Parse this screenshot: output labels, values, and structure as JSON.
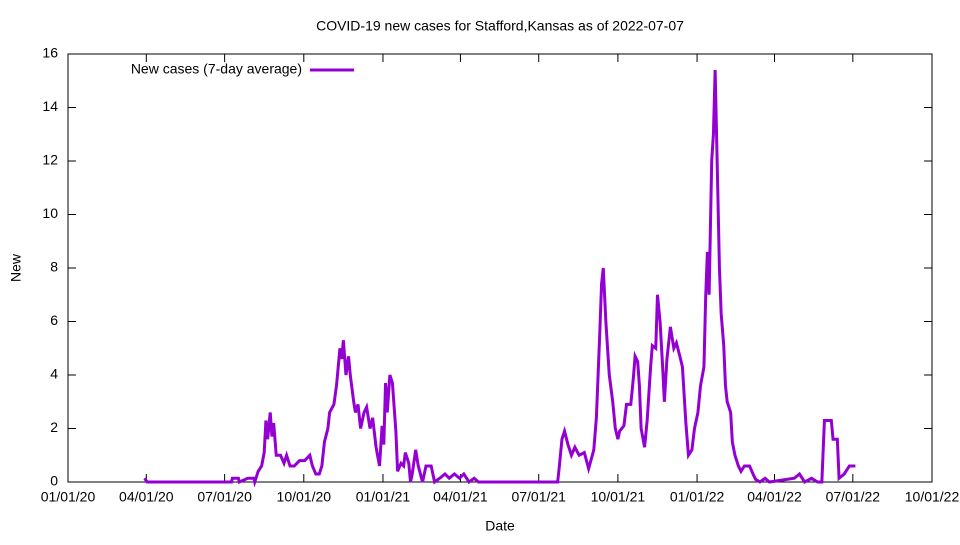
{
  "chart_data": {
    "type": "line",
    "title": "COVID-19 new cases for Stafford,Kansas as of 2022-07-07",
    "xlabel": "Date",
    "ylabel": "New",
    "legend": "top-left",
    "xlim": [
      "2020-01-01",
      "2022-10-01"
    ],
    "xticks": [
      {
        "value": "2020-01-01",
        "label": "01/01/20"
      },
      {
        "value": "2020-04-01",
        "label": "04/01/20"
      },
      {
        "value": "2020-07-01",
        "label": "07/01/20"
      },
      {
        "value": "2020-10-01",
        "label": "10/01/20"
      },
      {
        "value": "2021-01-01",
        "label": "01/01/21"
      },
      {
        "value": "2021-04-01",
        "label": "04/01/21"
      },
      {
        "value": "2021-07-01",
        "label": "07/01/21"
      },
      {
        "value": "2021-10-01",
        "label": "10/01/21"
      },
      {
        "value": "2022-01-01",
        "label": "01/01/22"
      },
      {
        "value": "2022-04-01",
        "label": "04/01/22"
      },
      {
        "value": "2022-07-01",
        "label": "07/01/22"
      },
      {
        "value": "2022-10-01",
        "label": "10/01/22"
      }
    ],
    "ylim": [
      0,
      16
    ],
    "yticks": [
      0,
      2,
      4,
      6,
      8,
      10,
      12,
      14,
      16
    ],
    "x": [
      "2020-03-30",
      "2020-04-02",
      "2020-07-09",
      "2020-07-10",
      "2020-07-17",
      "2020-07-18",
      "2020-07-28",
      "2020-08-04",
      "2020-08-05",
      "2020-08-09",
      "2020-08-13",
      "2020-08-16",
      "2020-08-18",
      "2020-08-20",
      "2020-08-23",
      "2020-08-25",
      "2020-08-27",
      "2020-08-30",
      "2020-09-04",
      "2020-09-08",
      "2020-09-11",
      "2020-09-15",
      "2020-09-20",
      "2020-09-26",
      "2020-10-02",
      "2020-10-08",
      "2020-10-11",
      "2020-10-15",
      "2020-10-19",
      "2020-10-22",
      "2020-10-25",
      "2020-10-29",
      "2020-10-31",
      "2020-11-05",
      "2020-11-08",
      "2020-11-12",
      "2020-11-14",
      "2020-11-16",
      "2020-11-19",
      "2020-11-22",
      "2020-11-24",
      "2020-11-28",
      "2020-11-30",
      "2020-12-03",
      "2020-12-06",
      "2020-12-10",
      "2020-12-13",
      "2020-12-17",
      "2020-12-20",
      "2020-12-24",
      "2020-12-28",
      "2020-12-31",
      "2021-01-02",
      "2021-01-04",
      "2021-01-06",
      "2021-01-09",
      "2021-01-12",
      "2021-01-16",
      "2021-01-18",
      "2021-01-22",
      "2021-01-25",
      "2021-01-27",
      "2021-01-31",
      "2021-02-02",
      "2021-02-04",
      "2021-02-08",
      "2021-02-11",
      "2021-02-16",
      "2021-02-20",
      "2021-02-26",
      "2021-03-02",
      "2021-03-08",
      "2021-03-14",
      "2021-03-19",
      "2021-03-25",
      "2021-03-31",
      "2021-04-05",
      "2021-04-11",
      "2021-04-17",
      "2021-04-22",
      "2021-07-23",
      "2021-07-25",
      "2021-07-28",
      "2021-07-31",
      "2021-08-04",
      "2021-08-08",
      "2021-08-12",
      "2021-08-17",
      "2021-08-23",
      "2021-08-28",
      "2021-09-03",
      "2021-09-06",
      "2021-09-10",
      "2021-09-12",
      "2021-09-14",
      "2021-09-17",
      "2021-09-19",
      "2021-09-21",
      "2021-09-25",
      "2021-09-28",
      "2021-10-01",
      "2021-10-03",
      "2021-10-08",
      "2021-10-11",
      "2021-10-16",
      "2021-10-19",
      "2021-10-21",
      "2021-10-24",
      "2021-10-26",
      "2021-10-28",
      "2021-11-01",
      "2021-11-04",
      "2021-11-08",
      "2021-11-10",
      "2021-11-14",
      "2021-11-16",
      "2021-11-19",
      "2021-11-22",
      "2021-11-24",
      "2021-11-27",
      "2021-12-01",
      "2021-12-05",
      "2021-12-08",
      "2021-12-12",
      "2021-12-15",
      "2021-12-19",
      "2021-12-22",
      "2021-12-26",
      "2021-12-29",
      "2022-01-02",
      "2022-01-05",
      "2022-01-09",
      "2022-01-11",
      "2022-01-13",
      "2022-01-15",
      "2022-01-18",
      "2022-01-20",
      "2022-01-22",
      "2022-01-25",
      "2022-01-27",
      "2022-01-29",
      "2022-02-01",
      "2022-02-03",
      "2022-02-05",
      "2022-02-09",
      "2022-02-11",
      "2022-02-14",
      "2022-02-18",
      "2022-02-21",
      "2022-02-25",
      "2022-03-03",
      "2022-03-07",
      "2022-03-10",
      "2022-03-15",
      "2022-03-21",
      "2022-03-26",
      "2022-04-24",
      "2022-04-30",
      "2022-05-06",
      "2022-05-14",
      "2022-05-21",
      "2022-05-26",
      "2022-05-29",
      "2022-06-06",
      "2022-06-08",
      "2022-06-13",
      "2022-06-15",
      "2022-06-21",
      "2022-06-27",
      "2022-07-04"
    ],
    "series": [
      {
        "name": "New cases (7-day average)",
        "color": "#9400d3",
        "values": [
          0.14,
          0,
          0,
          0.14,
          0.14,
          0,
          0.14,
          0.14,
          0,
          0.4,
          0.6,
          1.1,
          2.3,
          1.6,
          2.6,
          1.7,
          2.2,
          1.0,
          1.0,
          0.7,
          1.0,
          0.6,
          0.6,
          0.8,
          0.8,
          1.0,
          0.6,
          0.3,
          0.3,
          0.6,
          1.5,
          2.0,
          2.6,
          2.9,
          3.6,
          5.0,
          4.6,
          5.3,
          4.0,
          4.7,
          4.0,
          3.0,
          2.6,
          2.9,
          2.0,
          2.6,
          2.8,
          2.0,
          2.4,
          1.3,
          0.6,
          2.1,
          1.4,
          3.7,
          2.6,
          4.0,
          3.7,
          1.9,
          0.4,
          0.7,
          0.6,
          1.1,
          0.7,
          0,
          0.3,
          1.2,
          0.6,
          0,
          0.6,
          0.6,
          0,
          0.14,
          0.3,
          0.14,
          0.3,
          0.14,
          0.3,
          0,
          0.14,
          0,
          0,
          0.6,
          1.6,
          1.9,
          1.4,
          1.0,
          1.3,
          1.0,
          1.1,
          0.5,
          1.2,
          2.4,
          5.6,
          7.4,
          8.0,
          6.0,
          5.0,
          4.0,
          3.0,
          2.0,
          1.6,
          1.9,
          2.1,
          2.9,
          2.9,
          3.9,
          4.7,
          4.5,
          3.6,
          2.0,
          1.3,
          2.3,
          4.3,
          5.1,
          5.0,
          7.0,
          6.0,
          4.3,
          3.0,
          4.6,
          5.8,
          5.0,
          5.2,
          4.7,
          4.3,
          2.2,
          1.0,
          1.2,
          2.0,
          2.6,
          3.6,
          4.3,
          6.9,
          8.6,
          7.0,
          12.0,
          13.0,
          15.4,
          11.0,
          8.0,
          6.3,
          5.1,
          3.6,
          3.0,
          2.6,
          1.5,
          1.0,
          0.6,
          0.4,
          0.6,
          0.6,
          0.3,
          0.1,
          0,
          0.14,
          0,
          0.14,
          0.3,
          0,
          0.14,
          0,
          0,
          2.3,
          2.3,
          1.6,
          1.6,
          0.14,
          0.3,
          0.6,
          0.6
        ]
      }
    ]
  }
}
